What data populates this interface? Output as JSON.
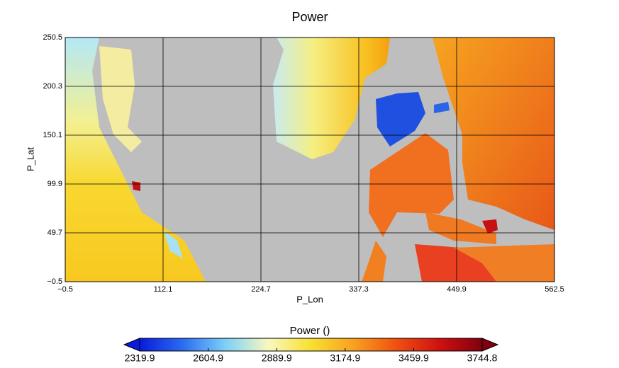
{
  "chart_data": {
    "type": "heatmap",
    "title": "Power",
    "x_label": "P_Lon",
    "y_label": "P_Lat",
    "xlim": [
      -0.5,
      562.5
    ],
    "xticks": [
      {
        "value": -0.5,
        "label": "−0.5"
      },
      112.1,
      224.7,
      337.3,
      449.9,
      562.5
    ],
    "ylim": [
      -0.5,
      250.5
    ],
    "yticks": [
      {
        "value": -0.5,
        "label": "−0.5"
      },
      49.7,
      99.9,
      150.1,
      200.3,
      250.5
    ],
    "grid": true,
    "background": "#bebebe",
    "colorbar": {
      "title": "Power ()",
      "clim": [
        2319.9,
        3744.8
      ],
      "ticks": [
        2319.9,
        2604.9,
        2889.9,
        3174.9,
        3459.9,
        3744.8
      ],
      "colors": [
        "#0a1adc",
        "#2a6cf0",
        "#7cd0f8",
        "#f8f8c0",
        "#f8e030",
        "#f8a020",
        "#f05010",
        "#d01010",
        "#800010"
      ]
    }
  }
}
